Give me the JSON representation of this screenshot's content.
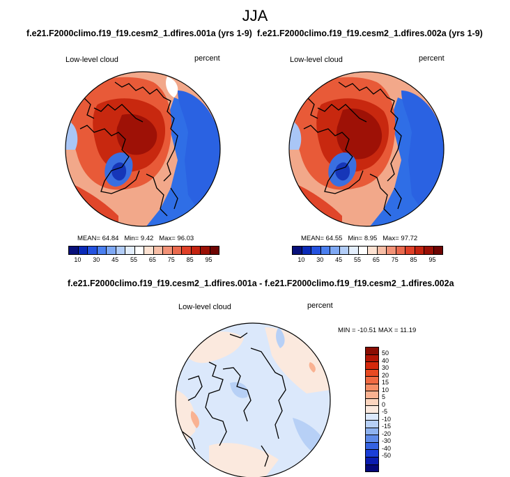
{
  "title": "JJA",
  "top_panels": [
    {
      "case_title": "f.e21.F2000climo.f19_f19.cesm2_1.dfires.001a (yrs 1-9)",
      "variable": "Low-level cloud",
      "units": "percent",
      "mean_label": "MEAN=",
      "mean": "64.84",
      "min_label": "Min=",
      "min": "9.42",
      "max_label": "Max=",
      "max": "96.03"
    },
    {
      "case_title": "f.e21.F2000climo.f19_f19.cesm2_1.dfires.002a (yrs 1-9)",
      "variable": "Low-level cloud",
      "units": "percent",
      "mean_label": "MEAN=",
      "mean": "64.55",
      "min_label": "Min=",
      "min": "8.95",
      "max_label": "Max=",
      "max": "97.72"
    }
  ],
  "top_colorbar": {
    "ticks": [
      "10",
      "30",
      "45",
      "55",
      "65",
      "75",
      "85",
      "95"
    ],
    "colors": [
      "#08107a",
      "#0a2ab8",
      "#2452e0",
      "#4a7ff0",
      "#7ea8f4",
      "#b2cdf8",
      "#e3eefc",
      "#ffffff",
      "#fde2d2",
      "#f8bea6",
      "#f29277",
      "#ea6a4e",
      "#df4028",
      "#c42310",
      "#9a1006",
      "#6e0503"
    ]
  },
  "diff_panel": {
    "title": "f.e21.F2000climo.f19_f19.cesm2_1.dfires.001a - f.e21.F2000climo.f19_f19.cesm2_1.dfires.002a",
    "variable": "Low-level cloud",
    "units": "percent",
    "minmax_text": "MIN = -10.51  MAX =  11.19"
  },
  "diff_colorbar": {
    "ticks": [
      "50",
      "40",
      "30",
      "20",
      "15",
      "10",
      "5",
      "0",
      "-5",
      "-10",
      "-15",
      "-20",
      "-30",
      "-40",
      "-50"
    ],
    "colors": [
      "#8a0d03",
      "#b31606",
      "#d5290c",
      "#e84a22",
      "#f06a42",
      "#f58e66",
      "#f9b292",
      "#fcd5bf",
      "#fbe9de",
      "#dbe8fb",
      "#b7d0f6",
      "#8eb2f0",
      "#5f8be9",
      "#3563e2",
      "#1a3ed8",
      "#0a1cb0",
      "#04087a"
    ]
  }
}
